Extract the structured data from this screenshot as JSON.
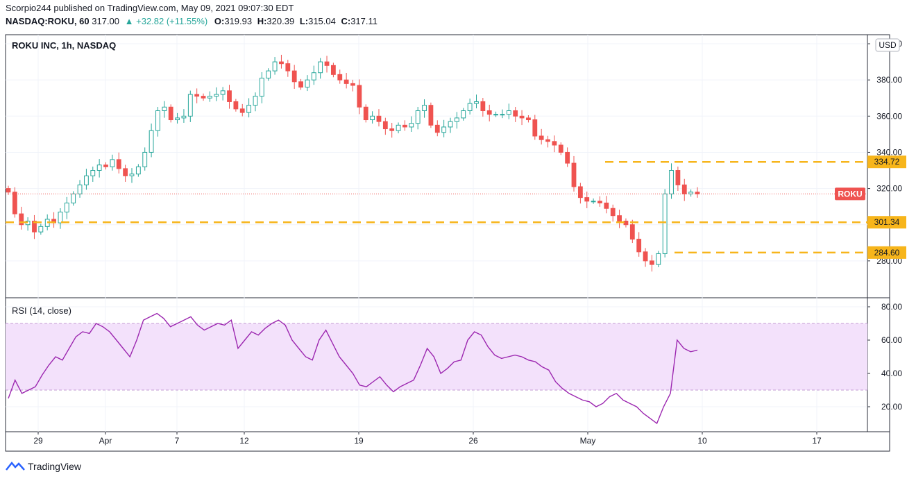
{
  "header": {
    "publisher": "Scorpio244 published on TradingView.com, May 09, 2021 09:07:30 EDT",
    "symbol": "NASDAQ:ROKU, 60",
    "price": "317.00",
    "change": "▲ +32.82 (+11.55%)",
    "o_label": "O:",
    "o_value": "319.93",
    "h_label": "H:",
    "h_value": "320.39",
    "l_label": "L:",
    "l_value": "315.04",
    "c_label": "C:",
    "c_value": "317.11"
  },
  "brand": {
    "name": "TradingView"
  },
  "colors": {
    "up": "#26a69a",
    "down": "#ef5350",
    "level": "#f7b51b",
    "rsi": "#9c27b0",
    "rsi_band": "#f3e1fb"
  },
  "chart_data": [
    {
      "type": "candlestick",
      "title": "ROKU INC, 1h, NASDAQ",
      "currency": "USD",
      "price_label": "ROKU",
      "last_price": 317.0,
      "ylim": [
        260,
        405
      ],
      "y_ticks": [
        "400.00",
        "380.00",
        "360.00",
        "340.00",
        "320.00",
        "300.00",
        "280.00"
      ],
      "x_ticks": [
        "29",
        "Apr",
        "7",
        "12",
        "19",
        "26",
        "May",
        "10",
        "17"
      ],
      "levels": [
        {
          "value": 334.72,
          "label": "334.72"
        },
        {
          "value": 301.34,
          "label": "301.34"
        },
        {
          "value": 284.6,
          "label": "284.60"
        }
      ],
      "series": [
        {
          "values": [
            318,
            306,
            300,
            302,
            296,
            299,
            303,
            301,
            307,
            312,
            317,
            322,
            327,
            330,
            333,
            332,
            336,
            331,
            327,
            328,
            332,
            340,
            352,
            363,
            365,
            358,
            359,
            360,
            372,
            371,
            370,
            371,
            372,
            374,
            368,
            364,
            362,
            366,
            371,
            381,
            385,
            390,
            389,
            385,
            379,
            376,
            380,
            384,
            390,
            388,
            383,
            380,
            378,
            377,
            365,
            358,
            360,
            357,
            353,
            352,
            355,
            354,
            356,
            363,
            366,
            355,
            351,
            354,
            357,
            359,
            363,
            367,
            368,
            363,
            361,
            361,
            361,
            363,
            360,
            359,
            358,
            349,
            347,
            346,
            344,
            340,
            334,
            321,
            315,
            313,
            313,
            312,
            309,
            305,
            302,
            300,
            292,
            285,
            280,
            278,
            284,
            317,
            330,
            322,
            317,
            318,
            317
          ]
        }
      ]
    },
    {
      "type": "line",
      "title": "RSI (14, close)",
      "ylim": [
        5,
        85
      ],
      "y_ticks": [
        "80.00",
        "60.00",
        "40.00",
        "20.00"
      ],
      "band": [
        30,
        70
      ],
      "series": [
        {
          "values": [
            25,
            36,
            28,
            30,
            32,
            39,
            45,
            50,
            48,
            55,
            62,
            65,
            64,
            70,
            68,
            65,
            60,
            55,
            50,
            60,
            72,
            74,
            76,
            73,
            68,
            70,
            72,
            74,
            69,
            66,
            68,
            70,
            69,
            72,
            55,
            60,
            65,
            63,
            67,
            70,
            72,
            69,
            60,
            55,
            50,
            48,
            60,
            66,
            58,
            50,
            45,
            40,
            33,
            32,
            35,
            38,
            33,
            29,
            32,
            34,
            36,
            45,
            55,
            50,
            40,
            43,
            47,
            48,
            60,
            65,
            63,
            56,
            51,
            49,
            50,
            51,
            50,
            48,
            47,
            44,
            42,
            35,
            31,
            28,
            26,
            24,
            23,
            20,
            22,
            26,
            28,
            24,
            22,
            20,
            16,
            13,
            10,
            20,
            28,
            60,
            55,
            53,
            54
          ]
        }
      ]
    }
  ]
}
